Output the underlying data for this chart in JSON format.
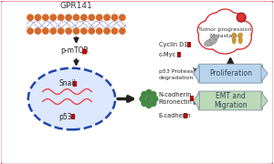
{
  "bg_color": "#ffffff",
  "border_color": "#e05060",
  "title": "GPR141",
  "membrane_color": "#d4692a",
  "membrane_line_color": "#9999cc",
  "arrow_color": "#222222",
  "red_bar_color": "#aa1111",
  "nucleus_color": "#2244aa",
  "nucleus_fill": "#dde8ff",
  "snail_label": "Snail",
  "p53_label": "p53",
  "pmtor_label": "p-mTOR",
  "cyclin_label": "Cyclin D1",
  "cmyc_label": "c-Myc",
  "p53deg_label": "p53 Proteasomal\ndegradation",
  "ncadherin_label": "N-cadherin\nFibronectin",
  "ecadherin_label": "E-cadherin",
  "tumor_label": "Tumor progression\nMetastasis",
  "prolif_label": "Proliferation",
  "emt_label": "EMT and\nMigration",
  "prolif_color": "#b8d4ec",
  "emt_color": "#bddab8",
  "cloud_color": "#dd3333",
  "green_dots_color": "#448844",
  "dna_color": "#ee4444"
}
